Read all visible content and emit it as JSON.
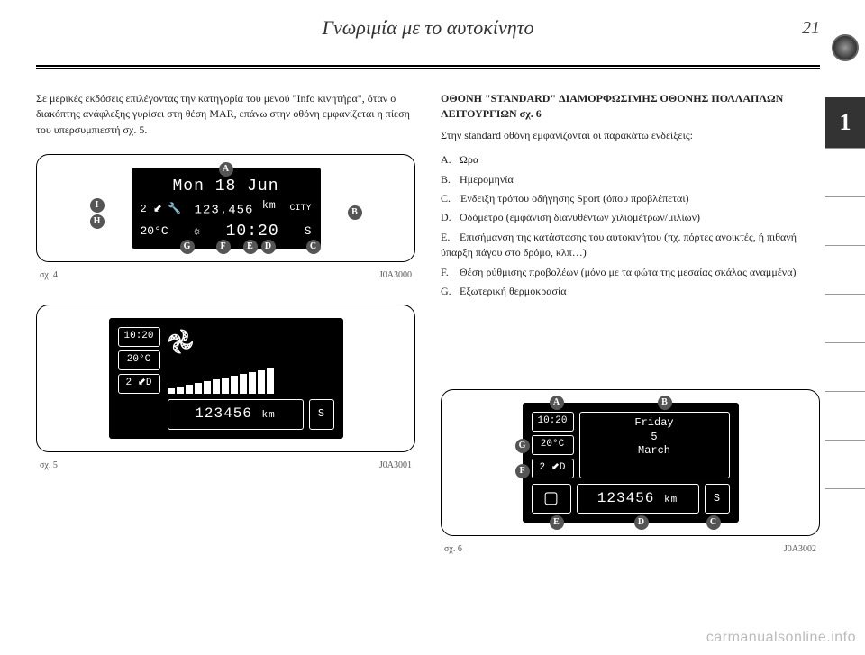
{
  "header": {
    "title": "Γνωριμία με το αυτοκίνητο",
    "page_number": "21"
  },
  "chapter": "1",
  "left_column": {
    "intro": "Σε μερικές εκδόσεις επιλέγοντας την κατηγορία του μενού \"Info κινητήρα\", όταν ο διακόπτης ανάφλεξης γυρίσει στη θέση MAR, επάνω στην οθόνη εμφανίζεται η πίεση του υπερσυμπιεστή σχ. 5."
  },
  "right_column": {
    "title": "ΟΘΟΝΗ \"STANDARD\" ΔΙΑΜΟΡΦΩΣΙΜΗΣ ΟΘΟΝΗΣ ΠΟΛΛΑΠΛΩΝ ΛΕΙΤΟΥΡΓΙΩΝ σχ. 6",
    "desc": "Στην standard οθόνη εμφανίζονται οι παρακάτω ενδείξεις:",
    "items": [
      {
        "key": "A.",
        "text": "Ώρα"
      },
      {
        "key": "B.",
        "text": "Ημερομηνία"
      },
      {
        "key": "C.",
        "text": "Ένδειξη τρόπου οδήγησης Sport (όπου προβλέπεται)"
      },
      {
        "key": "D.",
        "text": "Οδόμετρο (εμφάνιση διανυθέντων χιλιομέτρων/μιλίων)"
      },
      {
        "key": "E.",
        "text": "Επισήμανση της κατάστασης του αυτοκινήτου (πχ. πόρτες ανοικτές, ή πιθανή ύπαρξη πάγου στο δρόμο, κλπ…)"
      },
      {
        "key": "F.",
        "text": "Θέση ρύθμισης προβολέων (μόνο με τα φώτα της μεσαίας σκάλας αναμμένα)"
      },
      {
        "key": "G.",
        "text": "Εξωτερική θερμοκρασία"
      }
    ]
  },
  "fig4": {
    "date": "Mon 18 Jun",
    "gear": "2",
    "odo": "123.456",
    "odo_unit": "km",
    "city": "CITY",
    "temp": "20°C",
    "clock": "10:20",
    "s": "S",
    "callouts": [
      "A",
      "B",
      "C",
      "D",
      "E",
      "F",
      "G",
      "H",
      "I"
    ],
    "caption_left": "σχ. 4",
    "caption_right": "J0A3000"
  },
  "fig5": {
    "time": "10:20",
    "temp": "20°C",
    "gear": "2",
    "odo": "123456",
    "odo_unit": "km",
    "s": "S",
    "bar_count": 12,
    "caption_left": "σχ. 5",
    "caption_right": "J0A3001"
  },
  "fig6": {
    "time": "10:20",
    "temp": "20°C",
    "gear": "2",
    "weekday": "Friday",
    "day": "5",
    "month": "March",
    "odo": "123456",
    "odo_unit": "km",
    "s": "S",
    "callouts": [
      "A",
      "B",
      "C",
      "D",
      "E",
      "F",
      "G"
    ],
    "caption_left": "σχ. 6",
    "caption_right": "J0A3002"
  },
  "watermark": "carmanualsonline.info",
  "colors": {
    "screen_bg": "#000000",
    "screen_fg": "#ffffff",
    "callout_bg": "#555555",
    "sidebar_bg": "#333333"
  }
}
